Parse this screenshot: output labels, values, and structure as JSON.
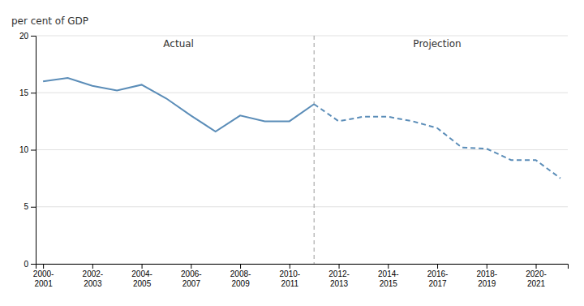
{
  "chart_data": {
    "type": "line",
    "y_label": "per cent of GDP",
    "categories": [
      "2000-\n2001",
      null,
      "2002-\n2003",
      null,
      "2004-\n2005",
      null,
      "2006-\n2007",
      null,
      "2008-\n2009",
      null,
      "2010-\n2011",
      null,
      "2012-\n2013",
      null,
      "2014-\n2015",
      null,
      "2016-\n2017",
      null,
      "2018-\n2019",
      null,
      "2020-\n2021",
      null
    ],
    "series": [
      {
        "color": "#5b8db8",
        "line_style": "solid",
        "values": [
          16.0,
          16.3,
          15.6,
          15.2,
          15.7,
          14.5,
          13.0,
          11.6,
          13.0,
          12.5,
          12.5,
          14.0,
          null,
          null,
          null,
          null,
          null,
          null,
          null,
          null,
          null,
          null
        ]
      },
      {
        "color": "#5b8db8",
        "line_style": "dashed",
        "values": [
          null,
          null,
          null,
          null,
          null,
          null,
          null,
          null,
          null,
          null,
          null,
          14.0,
          12.5,
          12.9,
          12.9,
          12.5,
          11.9,
          10.2,
          10.1,
          9.1,
          9.1,
          7.5
        ]
      }
    ],
    "annotations": [
      "Actual",
      "Projection"
    ],
    "ylim": [
      0,
      20
    ],
    "yticks": [
      0,
      5,
      10,
      15,
      20
    ],
    "grid": true
  }
}
